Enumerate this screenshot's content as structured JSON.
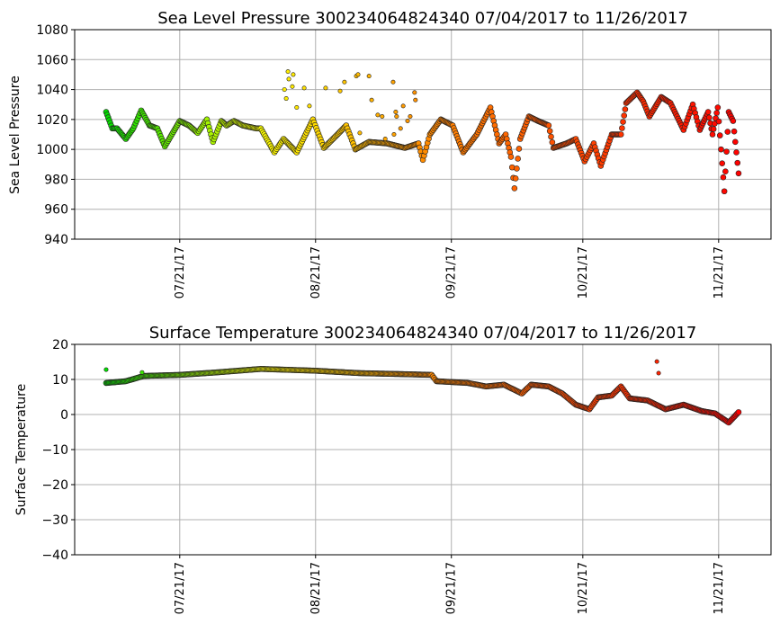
{
  "chart_data": [
    {
      "type": "scatter",
      "title": "Sea Level Pressure 300234064824340  07/04/2017 to 11/26/2017",
      "xlabel": "",
      "ylabel": "Sea Level Pressure",
      "x_units": "days since 07/04/2017",
      "xlim": [
        0,
        145
      ],
      "ylim": [
        940,
        1080
      ],
      "yticks": [
        940,
        960,
        980,
        1000,
        1020,
        1040,
        1060,
        1080
      ],
      "xticks": [
        {
          "day": 17,
          "label": "07/21/17"
        },
        {
          "day": 48,
          "label": "08/21/17"
        },
        {
          "day": 79,
          "label": "09/21/17"
        },
        {
          "day": 109,
          "label": "10/21/17"
        },
        {
          "day": 140,
          "label": "11/21/17"
        }
      ],
      "grid": true,
      "color_scale": [
        "#00e000",
        "#ffff00",
        "#ff8c00",
        "#ff4500",
        "#ff0000"
      ],
      "series": [
        {
          "name": "track",
          "x": [
            0.2,
            1.6,
            2.7,
            4.7,
            6.4,
            8.2,
            10.1,
            11.9,
            13.6,
            17.0,
            19.1,
            21.1,
            23.2,
            24.6,
            26.5,
            27.7,
            29.4,
            31.4,
            34.5,
            35.5,
            38.6,
            40.7,
            43.7,
            47.4,
            49.9,
            53.0,
            55.0,
            57.1,
            60.2,
            64.3,
            68.4,
            71.5,
            72.5,
            74.1,
            76.6,
            79.3,
            81.7,
            84.8,
            87.9,
            89.9,
            91.4,
            92.6,
            93.4,
            94.7,
            96.7,
            98.8,
            101.2,
            102.3,
            105.3,
            107.4,
            109.4,
            111.5,
            113.1,
            115.6,
            117.7,
            118.9,
            121.4,
            122.8,
            124.2,
            126.9,
            129.0,
            132.0,
            134.1,
            135.7,
            137.6,
            138.6,
            139.8,
            141.3,
            142.3,
            143.3,
            144.8
          ],
          "y": [
            1025,
            1014,
            1014,
            1007,
            1014,
            1026,
            1016,
            1014,
            1002,
            1019,
            1016,
            1011,
            1020,
            1005,
            1019,
            1016,
            1019,
            1016,
            1014,
            1014,
            998,
            1007,
            998,
            1020,
            1001,
            1010,
            1016,
            1000,
            1005,
            1004,
            1001,
            1004,
            993,
            1010,
            1020,
            1016,
            998,
            1010,
            1028,
            1004,
            1010,
            995,
            974,
            1007,
            1022,
            1019,
            1016,
            1001,
            1004,
            1007,
            992,
            1004,
            989,
            1010,
            1010,
            1031,
            1038,
            1032,
            1022,
            1035,
            1031,
            1013,
            1030,
            1013,
            1025,
            1010,
            1028,
            972,
            1025,
            1019,
            977
          ]
        }
      ],
      "outliers": {
        "x": [
          41.7,
          42.9,
          41.9,
          42.7,
          40.9,
          41.3,
          43.7,
          45.4,
          46.6,
          50.3,
          53.6,
          54.6,
          57.3,
          57.7,
          60.2,
          60.8,
          65.7,
          66.3,
          68.0,
          66.5,
          69.0,
          69.6,
          62.2,
          63.2,
          70.6,
          70.8,
          67.4,
          65.9,
          63.9,
          58.1
        ],
        "y": [
          1052,
          1050,
          1047,
          1042,
          1040,
          1034,
          1028,
          1041,
          1029,
          1041,
          1039,
          1045,
          1049,
          1050,
          1049,
          1033,
          1045,
          1025,
          1029,
          1022,
          1019,
          1022,
          1023,
          1022,
          1038,
          1033,
          1014,
          1010,
          1007,
          1011
        ]
      }
    },
    {
      "type": "scatter",
      "title": "Surface Temperature 300234064824340  07/04/2017 to 11/26/2017",
      "xlabel": "",
      "ylabel": "Surface Temperature",
      "x_units": "days since 07/04/2017",
      "xlim": [
        0,
        145
      ],
      "ylim": [
        -40,
        20
      ],
      "yticks": [
        -40,
        -30,
        -20,
        -10,
        0,
        10,
        20
      ],
      "xticks": [
        {
          "day": 17,
          "label": "07/21/17"
        },
        {
          "day": 48,
          "label": "08/21/17"
        },
        {
          "day": 79,
          "label": "09/21/17"
        },
        {
          "day": 109,
          "label": "10/21/17"
        },
        {
          "day": 140,
          "label": "11/21/17"
        }
      ],
      "grid": true,
      "color_scale": [
        "#00e000",
        "#ffff00",
        "#ff8c00",
        "#ff4500",
        "#ff0000"
      ],
      "series": [
        {
          "name": "track",
          "x": [
            0.2,
            4.7,
            8.8,
            17.0,
            25.3,
            35.5,
            47.8,
            58.1,
            68.4,
            74.5,
            75.6,
            82.8,
            86.9,
            91.0,
            95.1,
            97.2,
            101.2,
            104.3,
            107.4,
            110.5,
            112.5,
            115.6,
            117.7,
            119.7,
            123.8,
            127.9,
            132.0,
            136.1,
            139.2,
            142.3,
            144.8
          ],
          "y": [
            9,
            9.5,
            11,
            11.3,
            12,
            13,
            12.5,
            11.8,
            11.5,
            11.3,
            9.5,
            9,
            8,
            8.5,
            6,
            8.5,
            8,
            6,
            2.8,
            1.5,
            4.9,
            5.4,
            8,
            4.6,
            4,
            1.5,
            2.8,
            1,
            0.3,
            -2.3,
            1
          ]
        }
      ],
      "outliers": {
        "x": [
          0.2,
          8.4,
          125.9,
          126.3
        ],
        "y": [
          12.8,
          12,
          15.1,
          11.8
        ]
      }
    }
  ]
}
